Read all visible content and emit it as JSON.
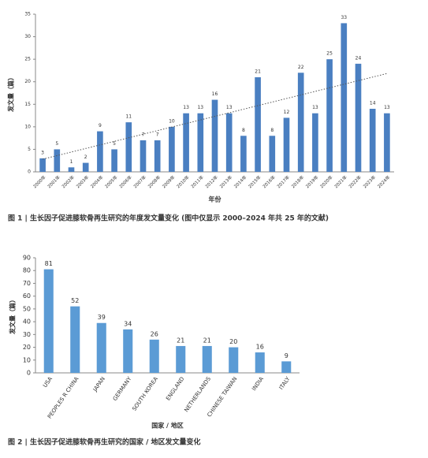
{
  "chart_data": [
    {
      "type": "bar",
      "caption": "图 1 | 生长因子促进膝软骨再生研究的年度发文量变化 (图中仅显示 2000–2024 年共 25 年的文献)",
      "y_label": "发文量（篇）",
      "x_label": "年份",
      "categories": [
        "2000年",
        "2001年",
        "2002年",
        "2003年",
        "2004年",
        "2005年",
        "2006年",
        "2007年",
        "2008年",
        "2009年",
        "2010年",
        "2011年",
        "2012年",
        "2013年",
        "2014年",
        "2015年",
        "2016年",
        "2017年",
        "2018年",
        "2019年",
        "2020年",
        "2021年",
        "2022年",
        "2023年",
        "2024年"
      ],
      "values": [
        3,
        5,
        1,
        2,
        9,
        5,
        11,
        7,
        7,
        10,
        13,
        13,
        16,
        13,
        8,
        21,
        8,
        12,
        22,
        13,
        25,
        33,
        24,
        14,
        13
      ],
      "color": "#4a7fc1",
      "ylim": [
        0,
        35
      ],
      "yticks": [
        0,
        5,
        10,
        15,
        20,
        25,
        30,
        35
      ],
      "trendline": true
    },
    {
      "type": "bar",
      "caption": "图 2 | 生长因子促进膝软骨再生研究的国家 / 地区发文量变化",
      "y_label": "发文量（篇）",
      "x_label": "国家 / 地区",
      "categories": [
        "USA",
        "PEOPLES R CHINA",
        "JAPAN",
        "GERMANY",
        "SOUTH KOREA",
        "ENGLAND",
        "NETHERLANDS",
        "CHINESE TAIWAN",
        "INDIA",
        "ITALY"
      ],
      "values": [
        81,
        52,
        39,
        34,
        26,
        21,
        21,
        20,
        16,
        9
      ],
      "color": "#5b9bd5",
      "ylim": [
        0,
        90
      ],
      "yticks": [
        0,
        10,
        20,
        30,
        40,
        50,
        60,
        70,
        80,
        90
      ],
      "trendline": false
    }
  ]
}
